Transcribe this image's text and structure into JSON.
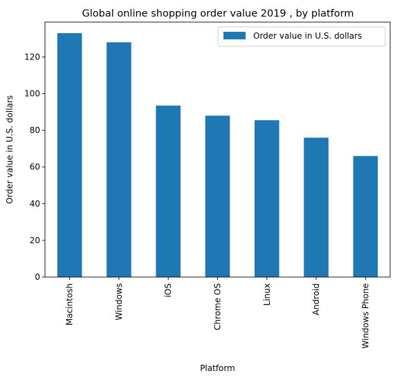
{
  "chart_data": {
    "type": "bar",
    "title": "Global online shopping order value 2019 , by platform",
    "xlabel": "Platform",
    "ylabel": "Order value in U.S. dollars",
    "categories": [
      "Macintosh",
      "Windows",
      "iOS",
      "Chrome OS",
      "Linux",
      "Android",
      "Windows Phone"
    ],
    "series": [
      {
        "name": "Order value in U.S. dollars",
        "values": [
          133,
          128,
          93.5,
          88,
          85.5,
          76,
          66
        ],
        "color": "#1f77b4"
      }
    ],
    "ylim": [
      0,
      139
    ],
    "yticks": [
      0,
      20,
      40,
      60,
      80,
      100,
      120
    ],
    "grid": false,
    "legend_position": "top-right"
  }
}
